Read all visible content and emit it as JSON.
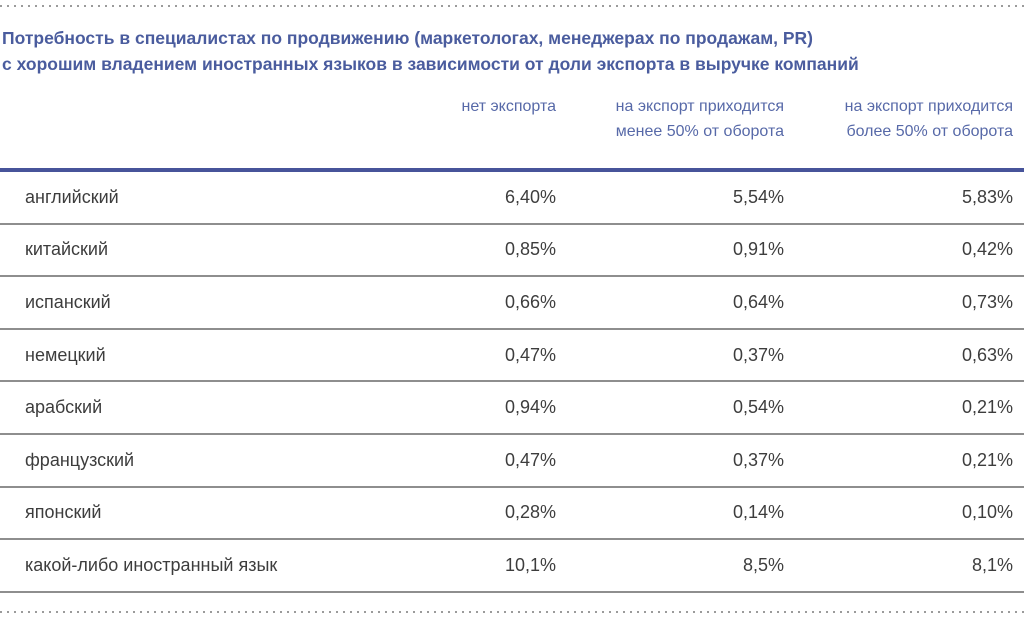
{
  "title": {
    "line1": "Потребность в специалистах по продвижению (маркетологах, менеджерах по продажам, PR)",
    "line2": "с хорошим владением иностранных языков в зависимости от доли экспорта в выручке компаний"
  },
  "header": {
    "col1": {
      "line1": "нет экспорта",
      "line2": ""
    },
    "col2": {
      "line1": "на экспорт приходится",
      "line2": "менее 50% от оборота"
    },
    "col3": {
      "line1": "на экспорт приходится",
      "line2": "более 50% от оборота"
    }
  },
  "table": {
    "rows": [
      {
        "label": "английский",
        "values": [
          "6,40%",
          "5,54%",
          "5,83%"
        ]
      },
      {
        "label": "китайский",
        "values": [
          "0,85%",
          "0,91%",
          "0,42%"
        ]
      },
      {
        "label": "испанский",
        "values": [
          "0,66%",
          "0,64%",
          "0,73%"
        ]
      },
      {
        "label": "немецкий",
        "values": [
          "0,47%",
          "0,37%",
          "0,63%"
        ]
      },
      {
        "label": "арабский",
        "values": [
          "0,94%",
          "0,54%",
          "0,21%"
        ]
      },
      {
        "label": "французский",
        "values": [
          "0,47%",
          "0,37%",
          "0,21%"
        ]
      },
      {
        "label": "японский",
        "values": [
          "0,28%",
          "0,14%",
          "0,10%"
        ]
      },
      {
        "label": "какой-либо иностранный язык",
        "values": [
          "10,1%",
          "8,5%",
          "8,1%"
        ]
      }
    ]
  },
  "colors": {
    "title_blue": "#4a5c9e",
    "header_blue": "#5769a8",
    "thick_rule_navy": "#47549a",
    "row_separator_gray": "#8e8e8e",
    "dotted_rule_gray": "#9b9b9b",
    "body_text": "#3d3d3d"
  },
  "chart_data": {
    "type": "table",
    "title": "Потребность в специалистах по продвижению (маркетологах, менеджерах по продажам, PR) с хорошим владением иностранных языков в зависимости от доли экспорта в выручке компаний",
    "columns": [
      "нет экспорта",
      "на экспорт приходится менее 50% от оборота",
      "на экспорт приходится более 50% от оборота"
    ],
    "rows": [
      {
        "language": "английский",
        "values_percent": [
          6.4,
          5.54,
          5.83
        ]
      },
      {
        "language": "китайский",
        "values_percent": [
          0.85,
          0.91,
          0.42
        ]
      },
      {
        "language": "испанский",
        "values_percent": [
          0.66,
          0.64,
          0.73
        ]
      },
      {
        "language": "немецкий",
        "values_percent": [
          0.47,
          0.37,
          0.63
        ]
      },
      {
        "language": "арабский",
        "values_percent": [
          0.94,
          0.54,
          0.21
        ]
      },
      {
        "language": "французский",
        "values_percent": [
          0.47,
          0.37,
          0.21
        ]
      },
      {
        "language": "японский",
        "values_percent": [
          0.28,
          0.14,
          0.1
        ]
      },
      {
        "language": "какой-либо иностранный язык",
        "values_percent": [
          10.1,
          8.5,
          8.1
        ]
      }
    ],
    "value_format": "percent, comma decimal separator",
    "legend_position": "none",
    "grid": "horizontal row separators"
  }
}
